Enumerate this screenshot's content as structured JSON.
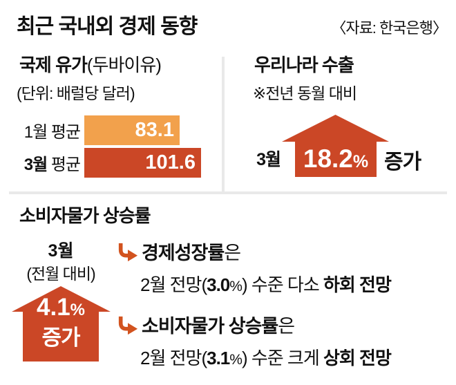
{
  "header": {
    "title": "최근 국내외 경제 동향",
    "source": "〈자료: 한국은행〉"
  },
  "colors": {
    "orange": "#F2A14C",
    "red_orange": "#CB4726",
    "curve_arrow": "#D2531F",
    "divider": "#E9E9E9"
  },
  "oil": {
    "title_bold": "국제 유가",
    "title_paren": "(두바이유)",
    "unit_note": "(단위: 배럴당 달러)",
    "bars": [
      {
        "month": "1월",
        "rest": " 평균",
        "value": "83.1"
      },
      {
        "month": "3월",
        "rest": " 평균",
        "value": "101.6"
      }
    ]
  },
  "exports": {
    "title": "우리나라 수출",
    "note": "※전년 동월 대비",
    "month": "3월",
    "value": "18.2",
    "percent": "%",
    "suffix": "증가"
  },
  "cpi": {
    "title": "소비자물가 상승률",
    "month": "3월",
    "note": "(전월 대비)",
    "value": "4.1",
    "percent": "%",
    "suffix": "증가",
    "bullets": [
      {
        "head_bold": "경제성장률",
        "head_tail": "은",
        "line_pre": "2월 전망(",
        "forecast": "3.0",
        "pct": "%",
        "line_mid": ") 수준 다소 ",
        "line_bold": "하회 전망"
      },
      {
        "head_bold": "소비자물가 상승률",
        "head_tail": "은",
        "line_pre": "2월 전망(",
        "forecast": "3.1",
        "pct": "%",
        "line_mid": ") 수준 크게 ",
        "line_bold": "상회 전망"
      }
    ]
  },
  "chart_data": [
    {
      "type": "bar",
      "orientation": "horizontal",
      "title": "국제 유가(두바이유)",
      "unit": "배럴당 달러",
      "categories": [
        "1월 평균",
        "3월 평균"
      ],
      "values": [
        83.1,
        101.6
      ],
      "bar_colors": [
        "#F2A14C",
        "#CB4726"
      ],
      "value_labels": [
        "83.1",
        "101.6"
      ]
    },
    {
      "type": "stat",
      "title": "우리나라 수출",
      "note": "전년 동월 대비",
      "period": "3월",
      "value": 18.2,
      "unit": "%",
      "direction": "증가"
    },
    {
      "type": "stat",
      "title": "소비자물가 상승률",
      "note": "전월 대비",
      "period": "3월",
      "value": 4.1,
      "unit": "%",
      "direction": "증가",
      "annotations": [
        "경제성장률은 2월 전망(3.0%) 수준 다소 하회 전망",
        "소비자물가 상승률은 2월 전망(3.1%) 수준 크게 상회 전망"
      ]
    }
  ]
}
